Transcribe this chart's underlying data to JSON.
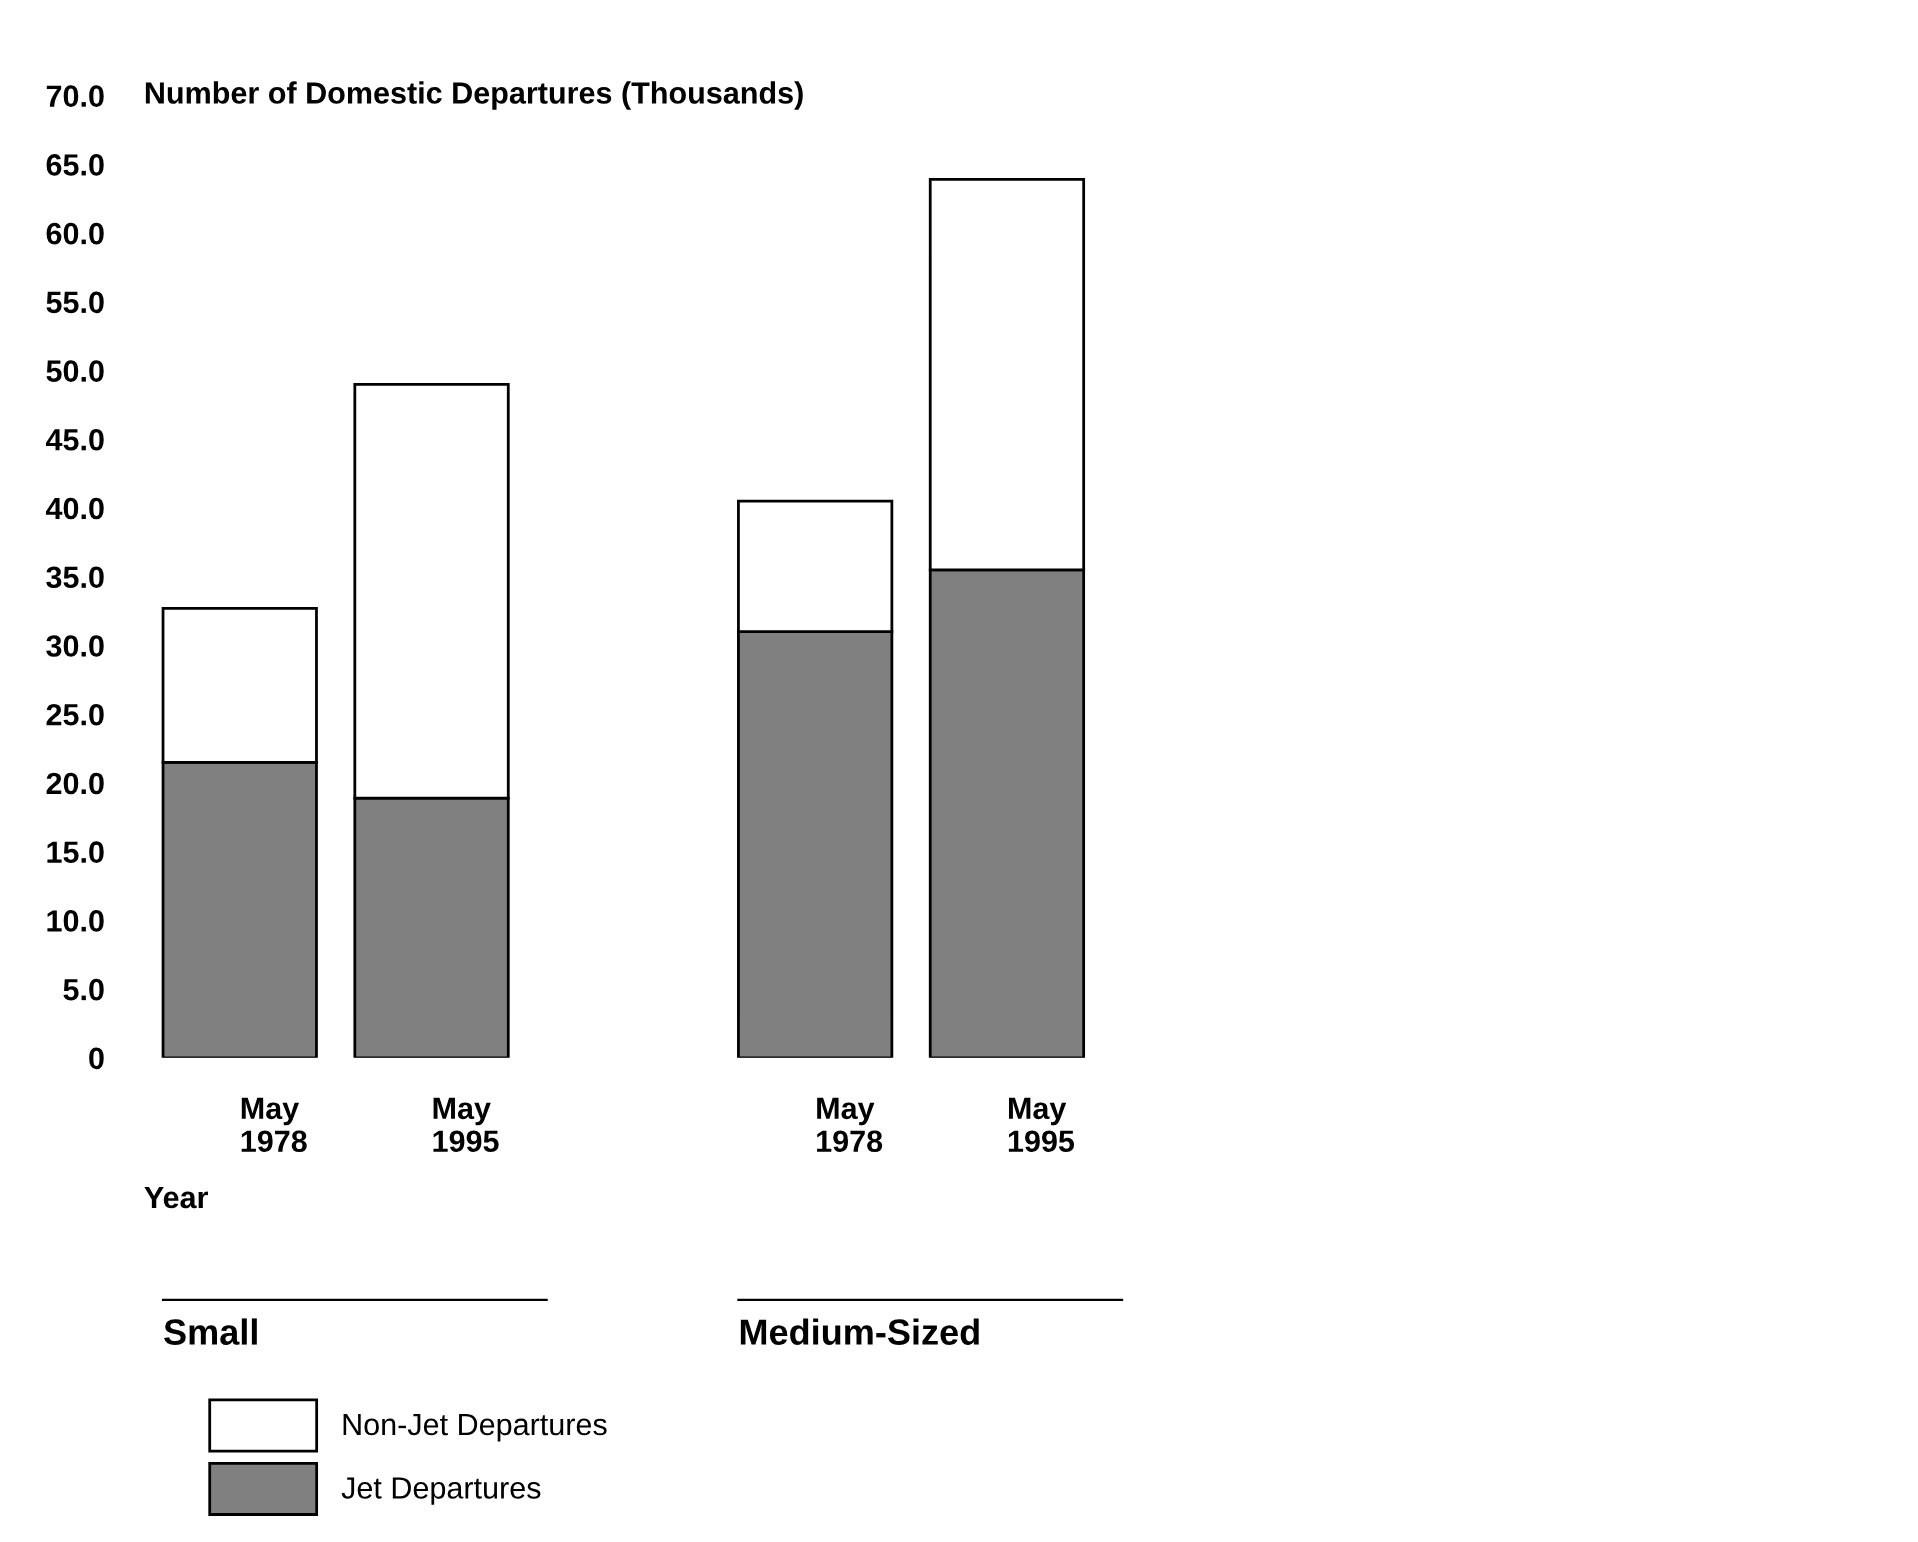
{
  "chart_data": {
    "type": "bar",
    "stacked": true,
    "ylabel": "Number of Domestic Departures (Thousands)",
    "xlabel": "Year",
    "categories": [
      "May\n1978",
      "May\n1995",
      null,
      "May\n1978",
      "May\n1995"
    ],
    "series": [
      {
        "name": "Jet Departures",
        "color": "#808080",
        "values": [
          21.5,
          18.9,
          null,
          31.0,
          35.5
        ]
      },
      {
        "name": "Non-Jet Departures",
        "color": "#ffffff",
        "values": [
          11.2,
          30.1,
          null,
          9.5,
          28.4
        ]
      }
    ],
    "ylim": [
      0,
      70
    ],
    "yticks": [
      0,
      {
        "value": 5,
        "label": "5.0"
      },
      {
        "value": 10,
        "label": "10.0"
      },
      {
        "value": 15,
        "label": "15.0"
      },
      {
        "value": 20,
        "label": "20.0"
      },
      {
        "value": 25,
        "label": "25.0"
      },
      {
        "value": 30,
        "label": "30.0"
      },
      {
        "value": 35,
        "label": "35.0"
      },
      {
        "value": 40,
        "label": "40.0"
      },
      {
        "value": 45,
        "label": "45.0"
      },
      {
        "value": 50,
        "label": "50.0"
      },
      {
        "value": 55,
        "label": "55.0"
      },
      {
        "value": 60,
        "label": "60.0"
      },
      {
        "value": 65,
        "label": "65.0"
      },
      {
        "value": 70,
        "label": "70.0"
      }
    ],
    "annotations": [
      "Small",
      "Medium-Sized"
    ],
    "grid": false,
    "legend": "bottom left"
  }
}
